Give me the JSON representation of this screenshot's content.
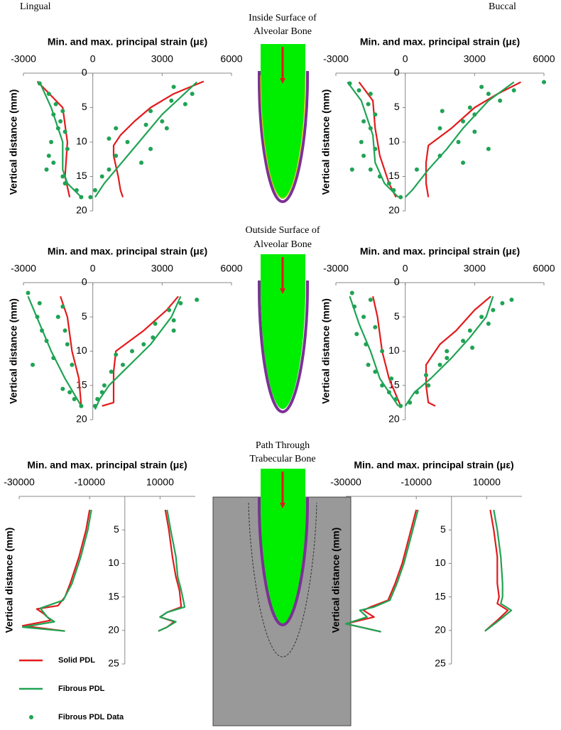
{
  "labels": {
    "lingual": "Lingual",
    "buccal": "Buccal"
  },
  "sections": [
    [
      "Inside Surface of",
      "Alveolar Bone"
    ],
    [
      "Outside Surface of",
      "Alveolar Bone"
    ],
    [
      "Path Through",
      "Trabecular Bone"
    ]
  ],
  "legend": [
    {
      "name": "Solid PDL",
      "color": "#e31a1c",
      "style": "line"
    },
    {
      "name": "Fibrous PDL",
      "color": "#1fa354",
      "style": "line"
    },
    {
      "name": "Fibrous PDL Data",
      "color": "#1fa354",
      "style": "points"
    }
  ],
  "chart_data": [
    {
      "type": "line",
      "xlabel": "Min. and max. principal strain (με)",
      "ylabel": "Vertical distance (mm)",
      "xlim": [
        -3000,
        6000
      ],
      "ylim": [
        0,
        20
      ],
      "xticks": [
        -3000,
        0,
        3000,
        6000
      ],
      "yticks": [
        0,
        5,
        10,
        15,
        20
      ],
      "yreverse": true,
      "series": [
        {
          "color": "#e31a1c",
          "style": "line",
          "x": [
            4800,
            3500,
            2500,
            1800,
            1200,
            900,
            900,
            1100,
            1200,
            1300
          ],
          "y": [
            1.2,
            3,
            5,
            7,
            9,
            10.5,
            12,
            15,
            17,
            18
          ]
        },
        {
          "color": "#e31a1c",
          "style": "line",
          "x": [
            -2400,
            -1300,
            -1100,
            -1200,
            -1000
          ],
          "y": [
            1.2,
            5,
            10,
            15,
            18
          ]
        },
        {
          "color": "#1fa354",
          "style": "line",
          "x": [
            4500,
            3800,
            3000,
            2000,
            1000,
            500,
            100
          ],
          "y": [
            1.3,
            3.5,
            6,
            10,
            14,
            16,
            18
          ]
        },
        {
          "color": "#1fa354",
          "style": "line",
          "x": [
            -2300,
            -1800,
            -1300,
            -1300,
            -1100,
            -500
          ],
          "y": [
            1.3,
            5,
            10,
            14,
            16,
            18
          ]
        },
        {
          "color": "#1fa354",
          "style": "points",
          "x": [
            -2300,
            -1900,
            -1600,
            -1300,
            -1700,
            -1400,
            -1500,
            -1200,
            -1800,
            -1100,
            -1900,
            -2000,
            -1700,
            -1300,
            -1200,
            -700,
            -500,
            3500,
            4300,
            3400,
            4000,
            2500,
            3000,
            2300,
            1000,
            3200,
            700,
            1500,
            2500,
            1000,
            2100,
            700,
            400,
            100,
            -100
          ],
          "y": [
            1.5,
            3,
            4.5,
            5.5,
            6,
            7,
            8,
            8.5,
            10,
            11,
            12,
            14,
            13,
            15,
            16,
            17,
            18,
            2,
            3,
            4,
            4.5,
            5.5,
            7,
            7.5,
            8,
            8,
            9.5,
            10,
            11,
            12,
            13,
            14,
            15,
            17,
            18
          ]
        }
      ]
    },
    {
      "type": "line",
      "xlabel": "Min. and max. principal strain (με)",
      "ylabel": "Vertical distance (mm)",
      "xlim": [
        -3000,
        6000
      ],
      "ylim": [
        0,
        20
      ],
      "xticks": [
        -3000,
        0,
        3000,
        6000
      ],
      "yticks": [
        0,
        5,
        10,
        15,
        20
      ],
      "yreverse": true,
      "series": [
        {
          "color": "#e31a1c",
          "style": "line",
          "x": [
            5000,
            4000,
            3000,
            2000,
            1000,
            900,
            900,
            1000
          ],
          "y": [
            1.3,
            3,
            5,
            8,
            10.5,
            13,
            16,
            18
          ]
        },
        {
          "color": "#e31a1c",
          "style": "line",
          "x": [
            -2000,
            -1400,
            -1300,
            -1100,
            -700,
            -400
          ],
          "y": [
            1.3,
            4,
            8,
            12,
            16,
            18
          ]
        },
        {
          "color": "#1fa354",
          "style": "line",
          "x": [
            4700,
            3600,
            2500,
            1800,
            1000,
            300,
            0
          ],
          "y": [
            1.3,
            4,
            8,
            11,
            14,
            17,
            18
          ]
        },
        {
          "color": "#1fa354",
          "style": "line",
          "x": [
            -2500,
            -1900,
            -1400,
            -1300,
            -900,
            -300
          ],
          "y": [
            1.3,
            4,
            9,
            13,
            16,
            18
          ]
        },
        {
          "color": "#1fa354",
          "style": "points",
          "x": [
            6000,
            4700,
            3300,
            3600,
            4100,
            2800,
            3000,
            1600,
            2500,
            1500,
            3000,
            2300,
            3600,
            1500,
            2500,
            500,
            -2400,
            -2000,
            -1500,
            -1600,
            -1300,
            -1800,
            -1500,
            -1900,
            -1300,
            -1800,
            -2300,
            -1500,
            -1100,
            -700,
            -500,
            -200
          ],
          "y": [
            1.3,
            2.5,
            2,
            3,
            4,
            5,
            6,
            5.5,
            7,
            8,
            8.5,
            10,
            11,
            12,
            13,
            14,
            1.5,
            2.5,
            3,
            4.5,
            6,
            7,
            8,
            10,
            11,
            12,
            14,
            14,
            15,
            16,
            17,
            18
          ]
        }
      ]
    },
    {
      "type": "line",
      "xlabel": "Min. and max. principal strain (με)",
      "ylabel": "Vertical distance (mm)",
      "xlim": [
        -3000,
        6000
      ],
      "ylim": [
        0,
        20
      ],
      "xticks": [
        -3000,
        0,
        3000,
        6000
      ],
      "yticks": [
        0,
        5,
        10,
        15,
        20
      ],
      "yreverse": true,
      "series": [
        {
          "color": "#e31a1c",
          "style": "line",
          "x": [
            3700,
            3200,
            2200,
            1000,
            900,
            900,
            900,
            400
          ],
          "y": [
            2,
            4,
            7,
            10,
            13,
            16,
            17.5,
            18
          ]
        },
        {
          "color": "#e31a1c",
          "style": "line",
          "x": [
            -1400,
            -1100,
            -900,
            -600,
            -500
          ],
          "y": [
            2,
            5,
            10,
            14,
            18
          ]
        },
        {
          "color": "#1fa354",
          "style": "line",
          "x": [
            3800,
            3400,
            2500,
            1600,
            700,
            300,
            100
          ],
          "y": [
            2,
            5,
            9,
            12,
            15,
            17,
            18.5
          ]
        },
        {
          "color": "#1fa354",
          "style": "line",
          "x": [
            -2800,
            -2300,
            -1800,
            -1200,
            -500
          ],
          "y": [
            2,
            6,
            10,
            14,
            18
          ]
        },
        {
          "color": "#1fa354",
          "style": "points",
          "x": [
            -2800,
            -2300,
            -1300,
            -2400,
            -1500,
            -2200,
            -1200,
            -2000,
            -1100,
            -2600,
            -1700,
            -900,
            -1300,
            -1000,
            -800,
            -500,
            4500,
            3800,
            3300,
            3500,
            2700,
            3500,
            2600,
            2200,
            1700,
            1000,
            1300,
            800,
            500,
            400,
            200,
            100
          ],
          "y": [
            1.5,
            3,
            3.5,
            5,
            5,
            7,
            7,
            8.5,
            9,
            12,
            11,
            12,
            15.5,
            16,
            17,
            18,
            2.5,
            3,
            4,
            5.5,
            6,
            7,
            8,
            9,
            10,
            10.5,
            12,
            13,
            15,
            16,
            17,
            18
          ]
        }
      ]
    },
    {
      "type": "line",
      "xlabel": "Min. and max. principal strain (με)",
      "ylabel": "Vertical distance (mm)",
      "xlim": [
        -3000,
        6000
      ],
      "ylim": [
        0,
        20
      ],
      "xticks": [
        -3000,
        0,
        3000,
        6000
      ],
      "yticks": [
        0,
        5,
        10,
        15,
        20
      ],
      "yreverse": true,
      "series": [
        {
          "color": "#e31a1c",
          "style": "line",
          "x": [
            3700,
            3000,
            2200,
            1500,
            900,
            900,
            1000,
            1300
          ],
          "y": [
            2,
            4,
            7,
            9,
            12,
            15,
            17.5,
            18
          ]
        },
        {
          "color": "#e31a1c",
          "style": "line",
          "x": [
            -1400,
            -1200,
            -1000,
            -700,
            -200
          ],
          "y": [
            2,
            5,
            10,
            14,
            18
          ]
        },
        {
          "color": "#1fa354",
          "style": "line",
          "x": [
            3800,
            3500,
            2800,
            2000,
            1100,
            400,
            0
          ],
          "y": [
            2,
            5,
            8,
            11,
            14,
            16,
            18
          ]
        },
        {
          "color": "#1fa354",
          "style": "line",
          "x": [
            -2400,
            -2000,
            -1500,
            -1100,
            -300
          ],
          "y": [
            2,
            6,
            10,
            14,
            18
          ]
        },
        {
          "color": "#1fa354",
          "style": "points",
          "x": [
            4600,
            4200,
            3800,
            3300,
            3600,
            2800,
            2500,
            2900,
            1800,
            1800,
            1500,
            900,
            1000,
            500,
            200,
            -2300,
            -1500,
            -2200,
            -1800,
            -1300,
            -2100,
            -1700,
            -1000,
            -1600,
            -1300,
            -600,
            -1000,
            -700,
            -400,
            -200
          ],
          "y": [
            2.5,
            3,
            4,
            5,
            6,
            7,
            8.5,
            9.5,
            10,
            11,
            12,
            13.5,
            15,
            16,
            17.5,
            1.5,
            2.5,
            3.5,
            5,
            6.5,
            7.5,
            9,
            10,
            12,
            13,
            14,
            15,
            16,
            17,
            18
          ]
        }
      ]
    },
    {
      "type": "line",
      "xlabel": "Min. and max. principal strain (με)",
      "ylabel": "Vertical distance (mm)",
      "xlim": [
        -30000,
        20000
      ],
      "ylim": [
        0,
        25
      ],
      "xticks": [
        -30000,
        -10000,
        10000
      ],
      "yticks": [
        5,
        10,
        15,
        20,
        25
      ],
      "yreverse": true,
      "series": [
        {
          "color": "#e31a1c",
          "style": "line",
          "x": [
            -10000,
            -11000,
            -13000,
            -15500,
            -17000,
            -19000,
            -25000,
            -23000,
            -21000,
            -29000,
            -17000
          ],
          "y": [
            2,
            5,
            9,
            13,
            15,
            16.3,
            16.8,
            17.5,
            18.5,
            19.3,
            20.1
          ]
        },
        {
          "color": "#e31a1c",
          "style": "line",
          "x": [
            11500,
            12500,
            13500,
            14500,
            15500,
            16000,
            12000,
            10000,
            14000,
            12000,
            9500
          ],
          "y": [
            2,
            5,
            9,
            12,
            14,
            16.5,
            17.3,
            18,
            18.7,
            19.5,
            20.1
          ]
        },
        {
          "color": "#1fa354",
          "style": "line",
          "x": [
            -9500,
            -10500,
            -12500,
            -15000,
            -17500,
            -24000,
            -22000,
            -20000,
            -29000,
            -17000
          ],
          "y": [
            2,
            5,
            9,
            13,
            15.5,
            16.7,
            18,
            18.7,
            19.5,
            20.1
          ]
        },
        {
          "color": "#1fa354",
          "style": "line",
          "x": [
            12000,
            13000,
            14500,
            15000,
            16000,
            17000,
            12000,
            10000,
            14500,
            12000,
            9500
          ],
          "y": [
            2,
            5,
            9,
            12,
            14,
            16.5,
            17.3,
            18,
            18.7,
            19.5,
            20.1
          ]
        }
      ]
    },
    {
      "type": "line",
      "xlabel": "Min. and max. principal strain (με)",
      "ylabel": "Vertical distance (mm)",
      "xlim": [
        -30000,
        20000
      ],
      "ylim": [
        0,
        25
      ],
      "xticks": [
        -30000,
        -10000,
        10000
      ],
      "yticks": [
        5,
        10,
        15,
        20,
        25
      ],
      "yreverse": true,
      "series": [
        {
          "color": "#e31a1c",
          "style": "line",
          "x": [
            -10000,
            -12000,
            -14000,
            -16000,
            -18000,
            -23000,
            -25000,
            -22000,
            -30000,
            -20000
          ],
          "y": [
            2,
            6,
            10,
            13,
            15.5,
            16.5,
            17,
            18,
            19,
            20.2
          ]
        },
        {
          "color": "#e31a1c",
          "style": "line",
          "x": [
            11000,
            12000,
            13000,
            13000,
            13500,
            13000,
            16000,
            13000,
            9500
          ],
          "y": [
            2,
            5,
            9,
            13,
            15,
            16,
            17,
            18.5,
            20.1
          ]
        },
        {
          "color": "#1fa354",
          "style": "line",
          "x": [
            -9500,
            -11500,
            -13500,
            -15500,
            -17500,
            -22000,
            -26000,
            -24000,
            -30000,
            -20000
          ],
          "y": [
            2,
            6,
            10,
            13,
            15.5,
            16.5,
            17,
            18,
            19,
            20.2
          ]
        },
        {
          "color": "#1fa354",
          "style": "line",
          "x": [
            12000,
            13000,
            14000,
            14500,
            14500,
            14000,
            17000,
            13500,
            9500
          ],
          "y": [
            2,
            5,
            9,
            13,
            15,
            16,
            17,
            18.5,
            20.1
          ]
        }
      ]
    }
  ]
}
